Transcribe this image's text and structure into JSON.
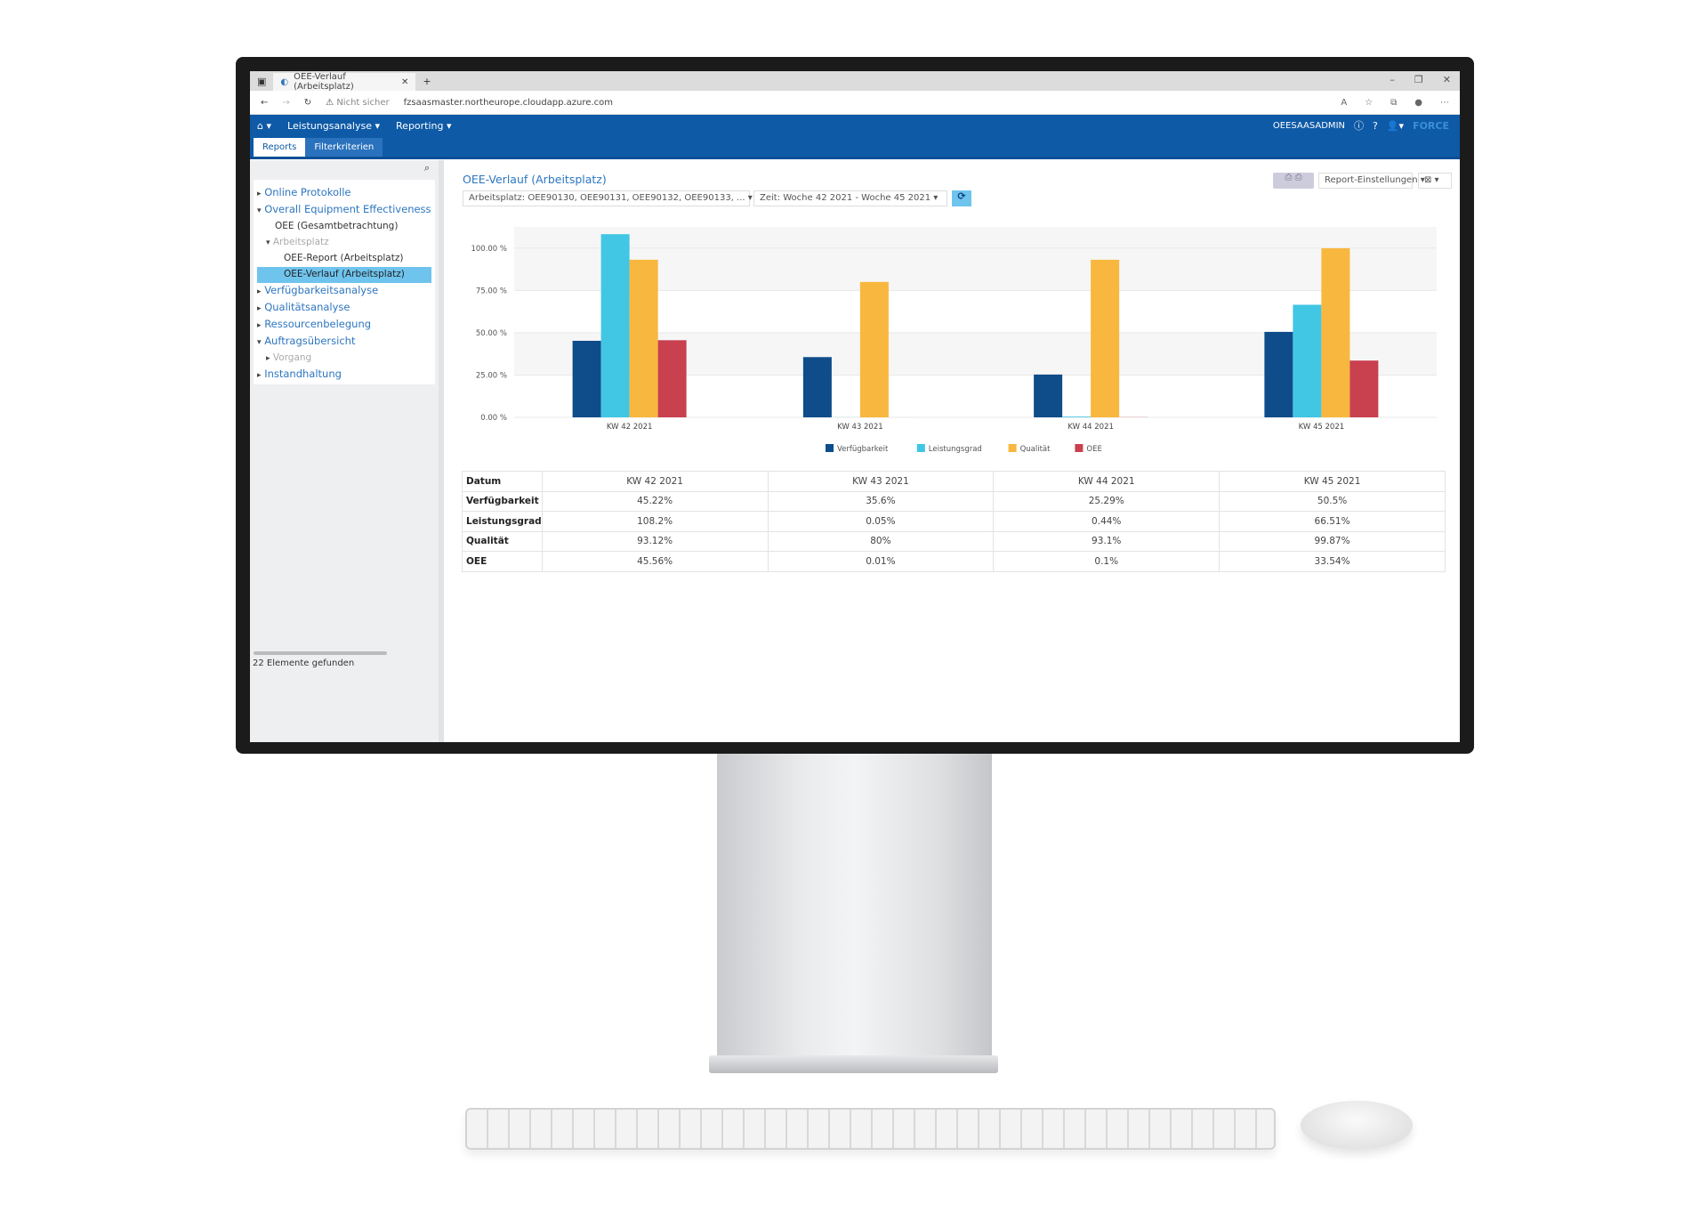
{
  "browser": {
    "tab_title": "OEE-Verlauf (Arbeitsplatz)",
    "security": "Nicht sicher",
    "url": "fzsaasmaster.northeurope.cloudapp.azure.com"
  },
  "nav": {
    "menu": [
      "Leistungsanalyse",
      "Reporting"
    ],
    "user": "OEESAASADMIN",
    "logo": "FORCE"
  },
  "subtabs": [
    "Reports",
    "Filterkriterien"
  ],
  "sidebar": {
    "items": [
      {
        "label": "Online Protokolle",
        "level": 0,
        "arrow": "▸",
        "style": ""
      },
      {
        "label": "Overall Equipment Effectiveness (OEE)",
        "level": 0,
        "arrow": "▾",
        "style": ""
      },
      {
        "label": "OEE (Gesamtbetrachtung)",
        "level": 1,
        "arrow": "",
        "style": "d"
      },
      {
        "label": "Arbeitsplatz",
        "level": 1,
        "arrow": "▾",
        "style": "g"
      },
      {
        "label": "OEE-Report (Arbeitsplatz)",
        "level": 2,
        "arrow": "",
        "style": "d"
      },
      {
        "label": "OEE-Verlauf (Arbeitsplatz)",
        "level": 2,
        "arrow": "",
        "style": "d sel"
      },
      {
        "label": "Verfügbarkeitsanalyse",
        "level": 0,
        "arrow": "▸",
        "style": ""
      },
      {
        "label": "Qualitätsanalyse",
        "level": 0,
        "arrow": "▸",
        "style": ""
      },
      {
        "label": "Ressourcenbelegung",
        "level": 0,
        "arrow": "▸",
        "style": ""
      },
      {
        "label": "Auftragsübersicht",
        "level": 0,
        "arrow": "▾",
        "style": ""
      },
      {
        "label": "Vorgang",
        "level": 1,
        "arrow": "▸",
        "style": "g"
      },
      {
        "label": "Instandhaltung",
        "level": 0,
        "arrow": "▸",
        "style": ""
      }
    ],
    "status": "22 Elemente gefunden"
  },
  "report": {
    "title": "OEE-Verlauf (Arbeitsplatz)",
    "arbeitsplatz_filter": "Arbeitsplatz: OEE90130, OEE90131, OEE90132, OEE90133, ...",
    "zeit_filter": "Zeit: Woche 42 2021 - Woche 45 2021",
    "settings": "Report-Einstellungen"
  },
  "chart_data": {
    "type": "bar",
    "categories": [
      "KW 42 2021",
      "KW 43 2021",
      "KW 44 2021",
      "KW 45 2021"
    ],
    "yticks": [
      "0.00 %",
      "25.00 %",
      "50.00 %",
      "75.00 %",
      "100.00 %"
    ],
    "ylim": [
      0,
      112.5
    ],
    "legend": "bottom",
    "series": [
      {
        "name": "Verfügbarkeit",
        "color": "#0f4c8a",
        "values": [
          45.22,
          35.6,
          25.29,
          50.5
        ]
      },
      {
        "name": "Leistungsgrad",
        "color": "#41c6e4",
        "values": [
          108.2,
          0.05,
          0.44,
          66.51
        ]
      },
      {
        "name": "Qualität",
        "color": "#f8b73e",
        "values": [
          93.12,
          80,
          93.1,
          99.87
        ]
      },
      {
        "name": "OEE",
        "color": "#c9404f",
        "values": [
          45.56,
          0.01,
          0.1,
          33.54
        ]
      }
    ]
  },
  "table": {
    "header": [
      "Datum",
      "KW 42 2021",
      "KW 43 2021",
      "KW 44 2021",
      "KW 45 2021"
    ],
    "rows": [
      [
        "Verfügbarkeit",
        "45.22%",
        "35.6%",
        "25.29%",
        "50.5%"
      ],
      [
        "Leistungsgrad",
        "108.2%",
        "0.05%",
        "0.44%",
        "66.51%"
      ],
      [
        "Qualität",
        "93.12%",
        "80%",
        "93.1%",
        "99.87%"
      ],
      [
        "OEE",
        "45.56%",
        "0.01%",
        "0.1%",
        "33.54%"
      ]
    ]
  }
}
